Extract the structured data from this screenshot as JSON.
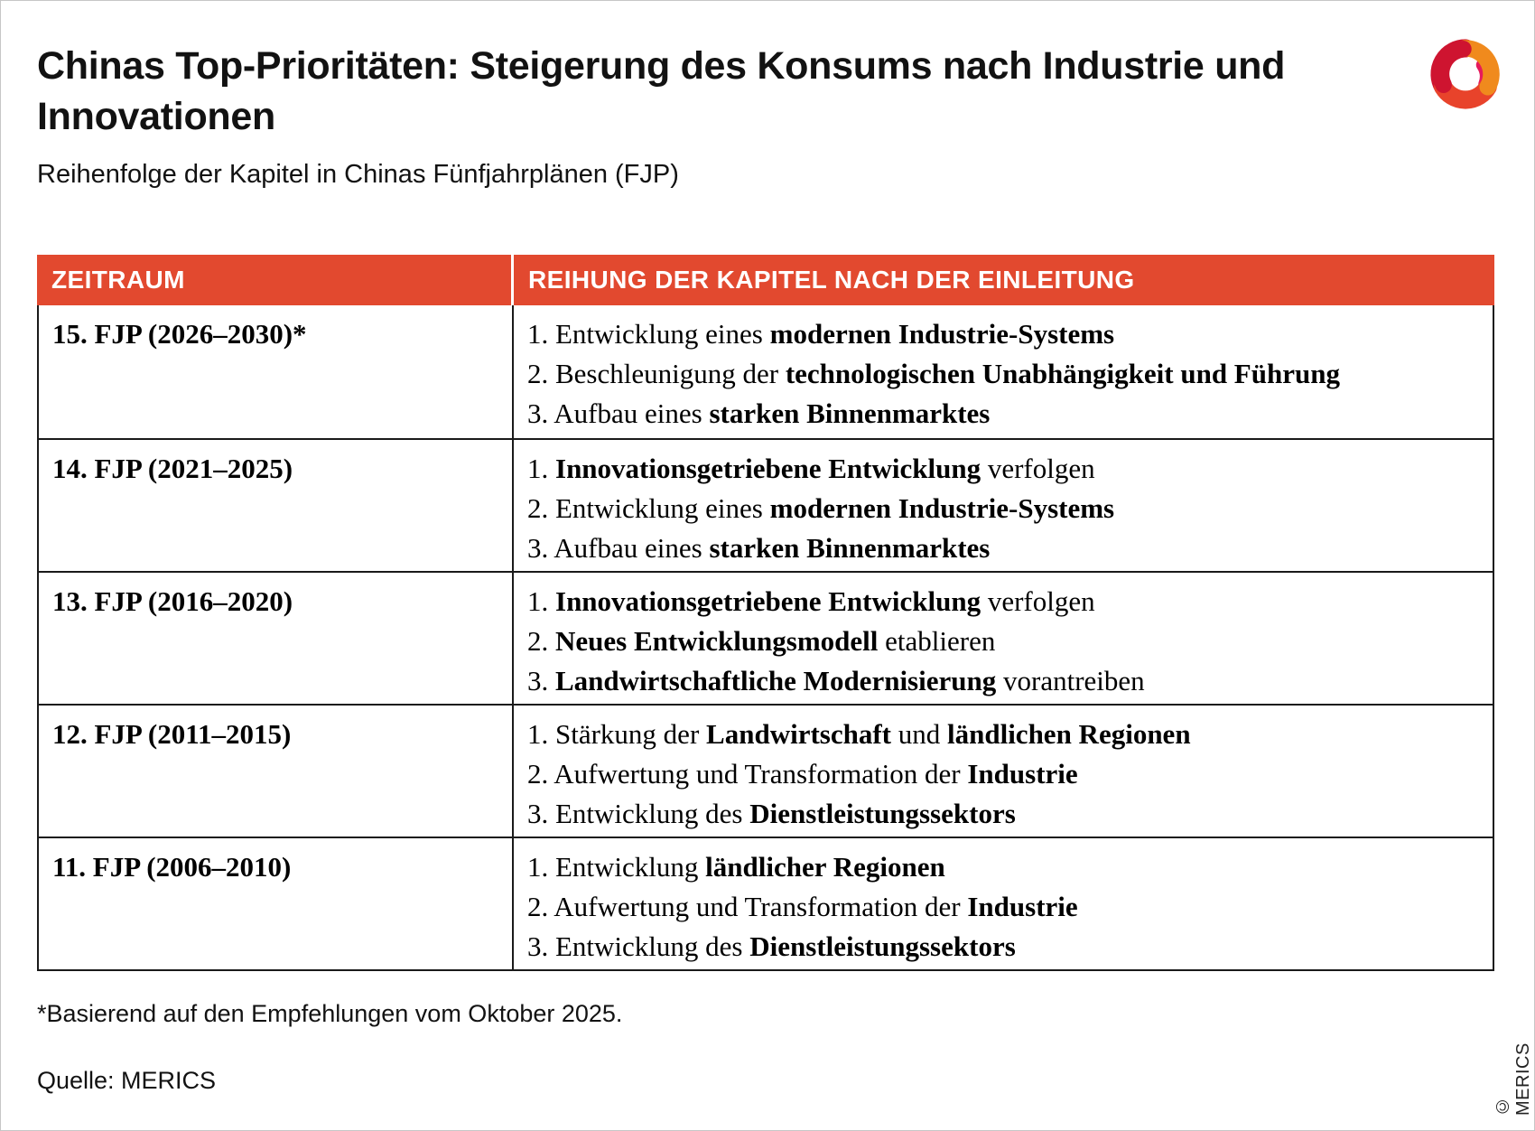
{
  "theme": {
    "accent_red": "#E2492F",
    "border_dark": "#1A1A1A",
    "header_text": "#FFFFFF",
    "body_text": "#000000"
  },
  "header": {
    "title": "Chinas Top-Prioritäten: Steigerung des Konsums nach Industrie und Innovationen",
    "subtitle": "Reihenfolge der Kapitel in Chinas Fünfjahrplänen (FJP)"
  },
  "logo": {
    "name": "MERICS logo",
    "colors": {
      "orange": "#F08A1D",
      "red": "#E8432B",
      "crimson": "#CE1430",
      "pink": "#E61A5C"
    }
  },
  "table": {
    "headers": [
      "ZEITRAUM",
      "REIHUNG DER KAPITEL NACH DER EINLEITUNG"
    ],
    "rows": [
      {
        "period": "15. FJP (2026–2030)*",
        "chapters": [
          [
            {
              "text": "1. Entwicklung eines ",
              "bold": false
            },
            {
              "text": "modernen Industrie-Systems",
              "bold": true
            }
          ],
          [
            {
              "text": "2. Beschleunigung der ",
              "bold": false
            },
            {
              "text": "technologischen Unabhängigkeit und Führung",
              "bold": true
            }
          ],
          [
            {
              "text": "3. Aufbau eines ",
              "bold": false
            },
            {
              "text": "starken Binnenmarktes",
              "bold": true
            }
          ]
        ]
      },
      {
        "period": "14. FJP (2021–2025)",
        "chapters": [
          [
            {
              "text": "1. ",
              "bold": false
            },
            {
              "text": "Innovationsgetriebene Entwicklung",
              "bold": true
            },
            {
              "text": " verfolgen",
              "bold": false
            }
          ],
          [
            {
              "text": "2. Entwicklung eines ",
              "bold": false
            },
            {
              "text": "modernen Industrie-Systems",
              "bold": true
            }
          ],
          [
            {
              "text": "3. Aufbau eines ",
              "bold": false
            },
            {
              "text": "starken Binnenmarktes",
              "bold": true
            }
          ]
        ]
      },
      {
        "period": "13. FJP (2016–2020)",
        "chapters": [
          [
            {
              "text": "1. ",
              "bold": false
            },
            {
              "text": "Innovationsgetriebene Entwicklung",
              "bold": true
            },
            {
              "text": " verfolgen",
              "bold": false
            }
          ],
          [
            {
              "text": "2. ",
              "bold": false
            },
            {
              "text": "Neues Entwicklungsmodell",
              "bold": true
            },
            {
              "text": " etablieren",
              "bold": false
            }
          ],
          [
            {
              "text": "3. ",
              "bold": false
            },
            {
              "text": "Landwirtschaftliche Modernisierung",
              "bold": true
            },
            {
              "text": " vorantreiben",
              "bold": false
            }
          ]
        ]
      },
      {
        "period": "12. FJP (2011–2015)",
        "chapters": [
          [
            {
              "text": "1. Stärkung der ",
              "bold": false
            },
            {
              "text": "Landwirtschaft",
              "bold": true
            },
            {
              "text": " und ",
              "bold": false
            },
            {
              "text": "ländlichen Regionen",
              "bold": true
            }
          ],
          [
            {
              "text": "2. Aufwertung und Transformation der ",
              "bold": false
            },
            {
              "text": "Industrie",
              "bold": true
            }
          ],
          [
            {
              "text": "3. Entwicklung des ",
              "bold": false
            },
            {
              "text": "Dienstleistungssektors",
              "bold": true
            }
          ]
        ]
      },
      {
        "period": "11. FJP (2006–2010)",
        "chapters": [
          [
            {
              "text": "1. Entwicklung ",
              "bold": false
            },
            {
              "text": "ländlicher Regionen",
              "bold": true
            }
          ],
          [
            {
              "text": "2. Aufwertung und Transformation der ",
              "bold": false
            },
            {
              "text": "Industrie",
              "bold": true
            }
          ],
          [
            {
              "text": "3. Entwicklung des ",
              "bold": false
            },
            {
              "text": "Dienstleistungssektors",
              "bold": true
            }
          ]
        ]
      }
    ]
  },
  "footer": {
    "footnote": "*Basierend auf den Empfehlungen vom Oktober 2025.",
    "source": "Quelle: MERICS",
    "copyright": "© MERICS"
  },
  "chart_data": {
    "type": "table",
    "title": "Chinas Top-Prioritäten: Steigerung des Konsums nach Industrie und Innovationen",
    "subtitle": "Reihenfolge der Kapitel in Chinas Fünfjahrplänen (FJP)",
    "columns": [
      "ZEITRAUM",
      "REIHUNG DER KAPITEL NACH DER EINLEITUNG"
    ],
    "rows": [
      {
        "zeitraum": "15. FJP (2026–2030)*",
        "kapitel": [
          "1. Entwicklung eines modernen Industrie-Systems",
          "2. Beschleunigung der technologischen Unabhängigkeit und Führung",
          "3. Aufbau eines starken Binnenmarktes"
        ]
      },
      {
        "zeitraum": "14. FJP (2021–2025)",
        "kapitel": [
          "1. Innovationsgetriebene Entwicklung verfolgen",
          "2. Entwicklung eines modernen Industrie-Systems",
          "3. Aufbau eines starken Binnenmarktes"
        ]
      },
      {
        "zeitraum": "13. FJP (2016–2020)",
        "kapitel": [
          "1. Innovationsgetriebene Entwicklung verfolgen",
          "2. Neues Entwicklungsmodell etablieren",
          "3. Landwirtschaftliche Modernisierung vorantreiben"
        ]
      },
      {
        "zeitraum": "12. FJP (2011–2015)",
        "kapitel": [
          "1. Stärkung der Landwirtschaft und ländlichen Regionen",
          "2. Aufwertung und Transformation der Industrie",
          "3. Entwicklung des Dienstleistungssektors"
        ]
      },
      {
        "zeitraum": "11. FJP (2006–2010)",
        "kapitel": [
          "1. Entwicklung ländlicher Regionen",
          "2. Aufwertung und Transformation der Industrie",
          "3. Entwicklung des Dienstleistungssektors"
        ]
      }
    ],
    "footnote": "*Basierend auf den Empfehlungen vom Oktober 2025.",
    "source": "Quelle: MERICS"
  }
}
